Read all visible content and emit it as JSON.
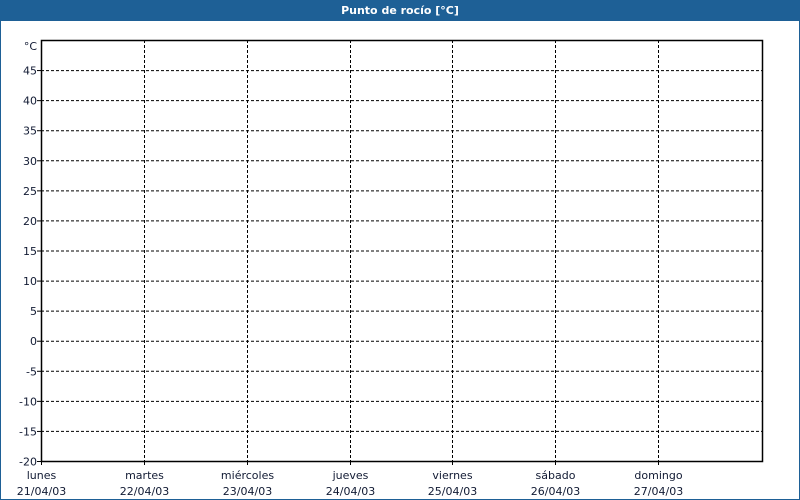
{
  "chart_data": {
    "type": "line",
    "title": "Punto de rocío [°C]",
    "ylabel": "°C",
    "ylim": [
      -20,
      50
    ],
    "yticks": [
      45,
      40,
      35,
      30,
      25,
      20,
      15,
      10,
      5,
      0,
      -5,
      -10,
      -15,
      -20
    ],
    "categories": [
      {
        "day": "lunes",
        "date": "21/04/03"
      },
      {
        "day": "martes",
        "date": "22/04/03"
      },
      {
        "day": "miércoles",
        "date": "23/04/03"
      },
      {
        "day": "jueves",
        "date": "24/04/03"
      },
      {
        "day": "viernes",
        "date": "25/04/03"
      },
      {
        "day": "sábado",
        "date": "26/04/03"
      },
      {
        "day": "domingo",
        "date": "27/04/03"
      }
    ],
    "series": [],
    "grid": true,
    "colors": {
      "titlebar": "#1e6096",
      "grid": "#000000"
    }
  }
}
